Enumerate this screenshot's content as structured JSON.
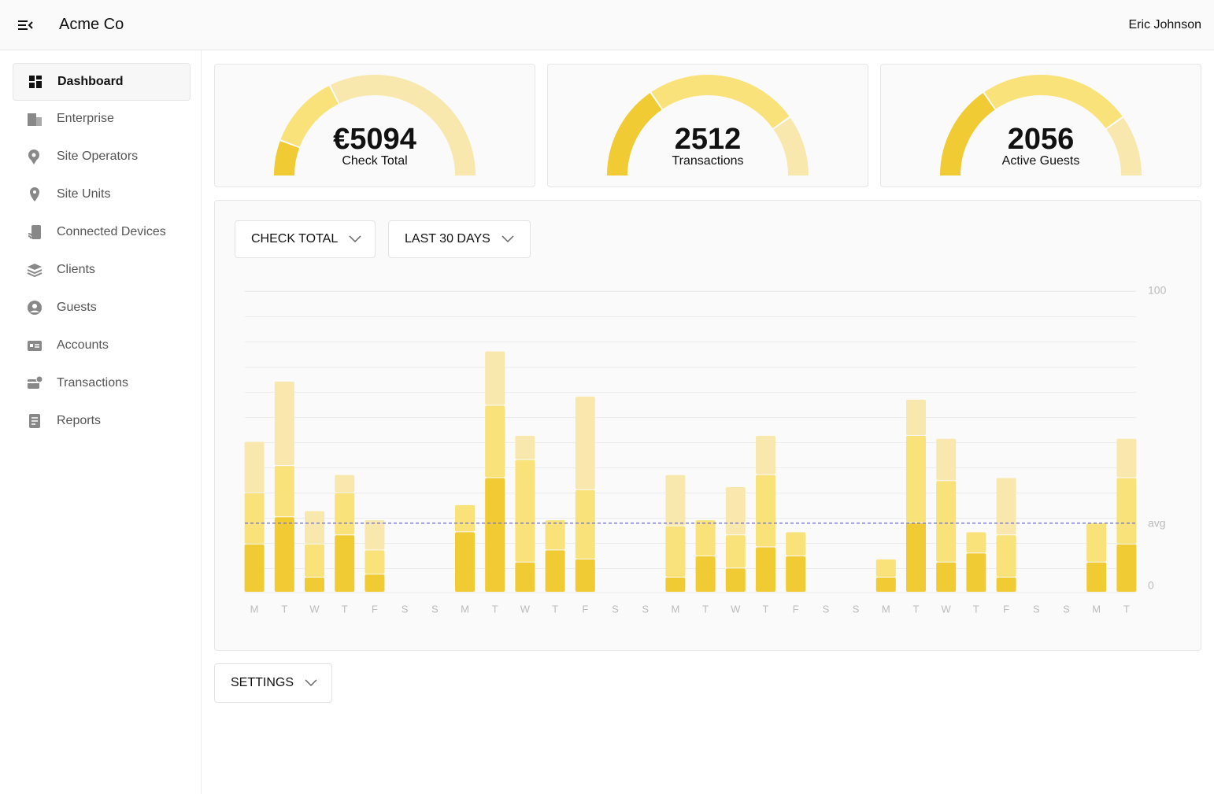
{
  "header": {
    "brand": "Acme Co",
    "user": "Eric Johnson"
  },
  "sidebar": {
    "items": [
      "Dashboard",
      "Enterprise",
      "Site Operators",
      "Site Units",
      "Connected Devices",
      "Clients",
      "Guests",
      "Accounts",
      "Transactions",
      "Reports"
    ],
    "active": 0
  },
  "kpis": [
    {
      "value": "€5094",
      "label": "Check Total"
    },
    {
      "value": "2512",
      "label": "Transactions"
    },
    {
      "value": "2056",
      "label": "Active Guests"
    }
  ],
  "controls": {
    "metric": "CHECK TOTAL",
    "range": "LAST 30 DAYS",
    "settings": "SETTINGS"
  },
  "chart_data": {
    "type": "bar",
    "stacked": true,
    "categories": [
      "M",
      "T",
      "W",
      "T",
      "F",
      "S",
      "S",
      "M",
      "T",
      "W",
      "T",
      "F",
      "S",
      "S",
      "M",
      "T",
      "W",
      "T",
      "F",
      "S",
      "S",
      "M",
      "T",
      "W",
      "T",
      "F",
      "S",
      "S",
      "M",
      "T"
    ],
    "series": [
      {
        "color": "#f1cb33",
        "values": [
          16,
          25,
          5,
          19,
          6,
          0,
          0,
          20,
          38,
          10,
          14,
          11,
          0,
          0,
          5,
          12,
          8,
          15,
          12,
          0,
          0,
          5,
          23,
          10,
          13,
          5,
          0,
          0,
          10,
          16
        ]
      },
      {
        "color": "#f9e27a",
        "values": [
          17,
          17,
          11,
          14,
          8,
          0,
          0,
          9,
          24,
          34,
          10,
          23,
          0,
          0,
          17,
          12,
          11,
          24,
          8,
          0,
          0,
          6,
          29,
          27,
          7,
          14,
          0,
          0,
          13,
          22
        ]
      },
      {
        "color": "#f8e8ae",
        "values": [
          17,
          28,
          11,
          6,
          10,
          0,
          0,
          0,
          18,
          8,
          0,
          31,
          0,
          0,
          17,
          0,
          16,
          13,
          0,
          0,
          0,
          0,
          12,
          14,
          0,
          19,
          0,
          0,
          0,
          13
        ]
      }
    ],
    "ylim": [
      0,
      100
    ],
    "yticks": [
      0,
      100
    ],
    "annotations": [
      {
        "label": "avg",
        "value": 23
      }
    ]
  }
}
